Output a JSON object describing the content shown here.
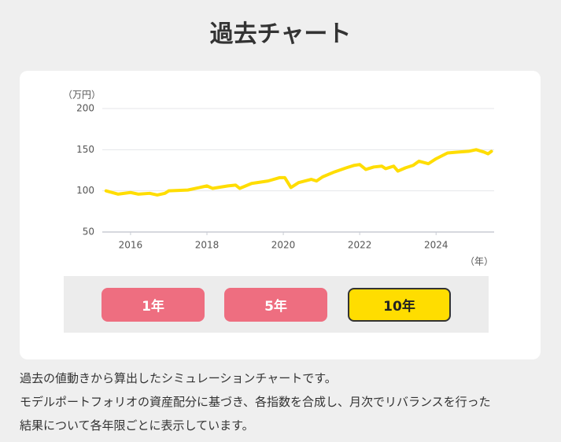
{
  "title": "過去チャート",
  "chart_data": {
    "type": "line",
    "y_label": "（万円）",
    "x_label": "（年）",
    "color": "#ffdd00",
    "x": [
      2015.36,
      2015.67,
      2016.0,
      2016.2,
      2016.5,
      2016.7,
      2016.9,
      2017.0,
      2017.5,
      2018.0,
      2018.15,
      2018.55,
      2018.75,
      2018.86,
      2019.17,
      2019.6,
      2019.9,
      2020.04,
      2020.2,
      2020.4,
      2020.73,
      2020.87,
      2021.03,
      2021.34,
      2021.65,
      2021.86,
      2022.0,
      2022.16,
      2022.37,
      2022.58,
      2022.68,
      2022.89,
      2023.0,
      2023.2,
      2023.4,
      2023.55,
      2023.8,
      2024.0,
      2024.3,
      2024.54,
      2024.85,
      2025.05,
      2025.26,
      2025.36,
      2025.45
    ],
    "values": [
      100,
      96,
      98,
      96,
      97,
      95,
      97,
      100,
      101,
      106,
      103,
      106,
      107,
      103,
      109,
      112,
      116,
      116,
      104,
      110,
      114,
      112,
      117,
      123,
      128,
      131,
      132,
      126,
      129,
      130,
      127,
      130,
      124,
      128,
      131,
      136,
      133,
      139,
      146,
      147,
      148,
      150,
      147,
      145,
      148
    ],
    "xlim": [
      2015.26,
      2025.52
    ],
    "xticks": [
      2016,
      2018,
      2020,
      2022,
      2024
    ],
    "ylim": [
      50,
      200
    ],
    "yticks": [
      50,
      100,
      150,
      200
    ],
    "grid": true
  },
  "buttons": [
    {
      "label": "1年",
      "active": false
    },
    {
      "label": "5年",
      "active": false
    },
    {
      "label": "10年",
      "active": true
    }
  ],
  "description": [
    "過去の値動きから算出したシミュレーションチャートです。",
    "モデルポートフォリオの資産配分に基づき、各指数を合成し、月次でリバランスを行った",
    "結果について各年限ごとに表示しています。"
  ]
}
